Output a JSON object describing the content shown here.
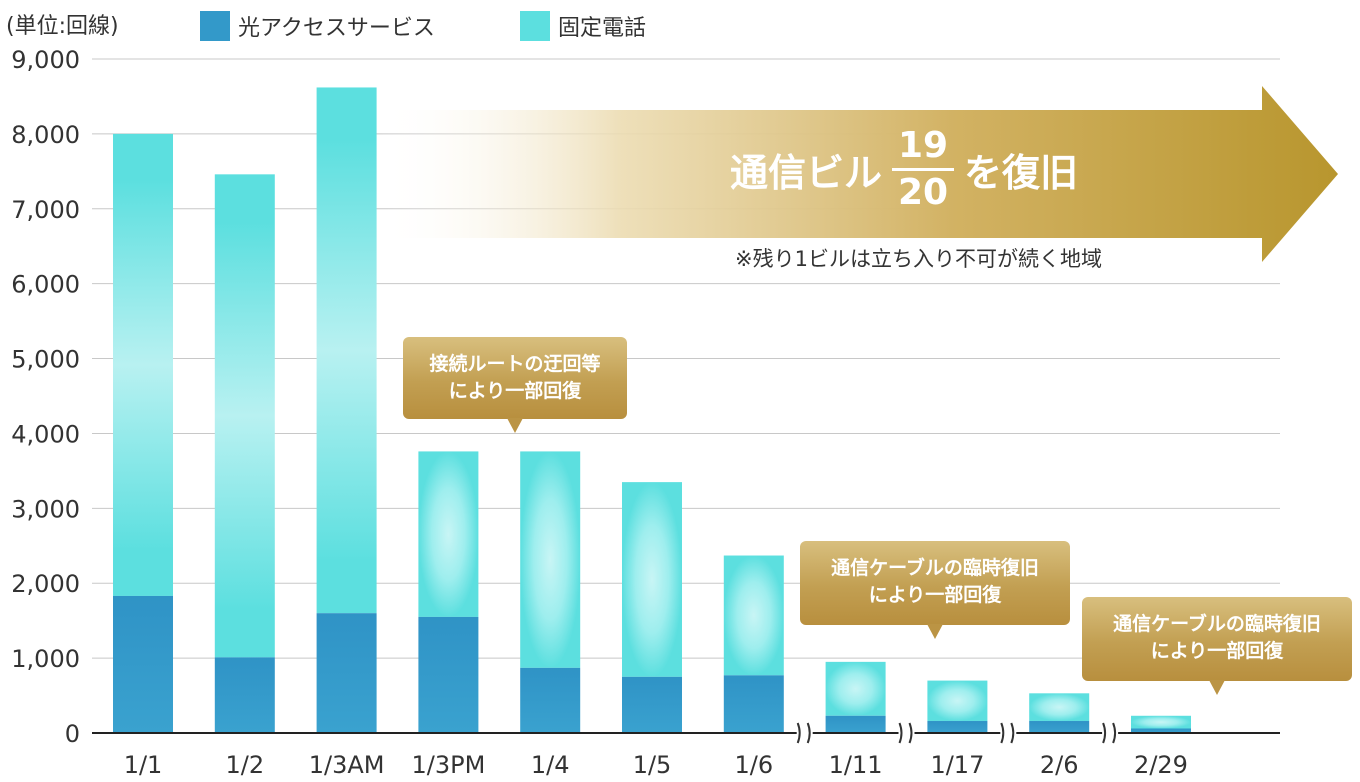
{
  "unit_label": "(単位:回線)",
  "legend": [
    {
      "name": "光アクセスサービス",
      "color": "#3399c9"
    },
    {
      "name": "固定電話",
      "color": "#5cdfdf"
    }
  ],
  "arrow": {
    "prefix": "通信ビル",
    "numerator": "19",
    "denominator": "20",
    "suffix": "を復旧",
    "note": "※残り1ビルは立ち入り不可が続く地域",
    "color": "#b8962e"
  },
  "callouts": [
    {
      "lines": [
        "接続ルートの迂回等",
        "により一部回復"
      ]
    },
    {
      "lines": [
        "通信ケーブルの臨時復旧",
        "により一部回復"
      ]
    },
    {
      "lines": [
        "通信ケーブルの臨時復旧",
        "により一部回復"
      ]
    }
  ],
  "chart_data": {
    "type": "bar",
    "stacked": true,
    "categories": [
      "1/1",
      "1/2",
      "1/3AM",
      "1/3PM",
      "1/4",
      "1/5",
      "1/6",
      "1/11",
      "1/17",
      "2/6",
      "2/29"
    ],
    "axis_breaks_before": [
      "1/11",
      "1/17",
      "2/6",
      "2/29"
    ],
    "series": [
      {
        "name": "光アクセスサービス",
        "color": "#3399c9",
        "values": [
          1830,
          1010,
          1600,
          1550,
          870,
          750,
          770,
          230,
          160,
          160,
          60
        ]
      },
      {
        "name": "固定電話",
        "color": "#5cdfdf",
        "values": [
          6170,
          6450,
          7020,
          2210,
          2890,
          2600,
          1600,
          720,
          540,
          370,
          170
        ]
      }
    ],
    "ylim": [
      0,
      9000
    ],
    "yticks": [
      "0",
      "1,000",
      "2,000",
      "3,000",
      "4,000",
      "5,000",
      "6,000",
      "7,000",
      "8,000",
      "9,000"
    ],
    "ytick_values": [
      0,
      1000,
      2000,
      3000,
      4000,
      5000,
      6000,
      7000,
      8000,
      9000
    ],
    "grid": true,
    "legend_position": "top"
  }
}
